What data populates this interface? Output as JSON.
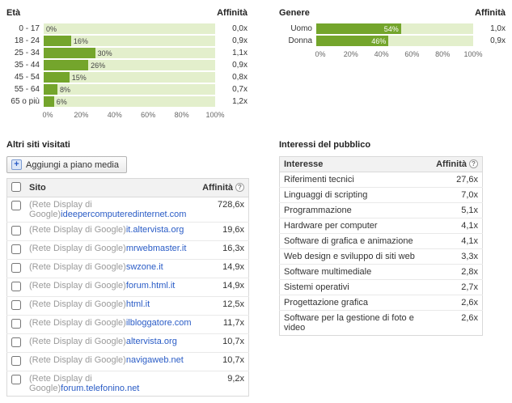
{
  "colors": {
    "bar_green": "#74a52c",
    "band_green": "#e3efcc",
    "link_blue": "#2a5cc6"
  },
  "ui": {
    "help_glyph": "?",
    "add_icon_glyph": "+"
  },
  "chart_data": [
    {
      "id": "age",
      "type": "bar",
      "title": "Età",
      "affinity_label": "Affinità",
      "categories": [
        "0 - 17",
        "18 - 24",
        "25 - 34",
        "35 - 44",
        "45 - 54",
        "55 - 64",
        "65 o più"
      ],
      "values": [
        0,
        16,
        30,
        26,
        15,
        8,
        6
      ],
      "value_labels": [
        "0%",
        "16%",
        "30%",
        "26%",
        "15%",
        "8%",
        "6%"
      ],
      "affinities": [
        "0,0x",
        "0,9x",
        "1,1x",
        "0,9x",
        "0,8x",
        "0,7x",
        "1,2x"
      ],
      "axis_ticks": [
        "0%",
        "20%",
        "40%",
        "60%",
        "80%",
        "100%"
      ],
      "xlim": [
        0,
        100
      ]
    },
    {
      "id": "gender",
      "type": "bar",
      "title": "Genere",
      "affinity_label": "Affinità",
      "categories": [
        "Uomo",
        "Donna"
      ],
      "values": [
        54,
        46
      ],
      "value_labels": [
        "54%",
        "46%"
      ],
      "affinities": [
        "1,0x",
        "0,9x"
      ],
      "axis_ticks": [
        "0%",
        "20%",
        "40%",
        "60%",
        "80%",
        "100%"
      ],
      "xlim": [
        0,
        100
      ]
    }
  ],
  "sites_table": {
    "title": "Altri siti visitati",
    "add_button_label": "Aggiungi a piano media",
    "columns": {
      "site": "Sito",
      "affinity": "Affinità"
    },
    "rows": [
      {
        "prefix": "(Rete Display di Google)",
        "link": "ideepercomputeredinternet.com",
        "affinity": "728,6x"
      },
      {
        "prefix": "(Rete Display di Google)",
        "link": "it.altervista.org",
        "affinity": "19,6x"
      },
      {
        "prefix": "(Rete Display di Google)",
        "link": "mrwebmaster.it",
        "affinity": "16,3x"
      },
      {
        "prefix": "(Rete Display di Google)",
        "link": "swzone.it",
        "affinity": "14,9x"
      },
      {
        "prefix": "(Rete Display di Google)",
        "link": "forum.html.it",
        "affinity": "14,9x"
      },
      {
        "prefix": "(Rete Display di Google)",
        "link": "html.it",
        "affinity": "12,5x"
      },
      {
        "prefix": "(Rete Display di Google)",
        "link": "ilbloggatore.com",
        "affinity": "11,7x"
      },
      {
        "prefix": "(Rete Display di Google)",
        "link": "altervista.org",
        "affinity": "10,7x"
      },
      {
        "prefix": "(Rete Display di Google)",
        "link": "navigaweb.net",
        "affinity": "10,7x"
      },
      {
        "prefix": "(Rete Display di Google)",
        "link": "forum.telefonino.net",
        "affinity": "9,2x"
      }
    ]
  },
  "interests_table": {
    "title": "Interessi del pubblico",
    "columns": {
      "interest": "Interesse",
      "affinity": "Affinità"
    },
    "rows": [
      {
        "label": "Riferimenti tecnici",
        "affinity": "27,6x"
      },
      {
        "label": "Linguaggi di scripting",
        "affinity": "7,0x"
      },
      {
        "label": "Programmazione",
        "affinity": "5,1x"
      },
      {
        "label": "Hardware per computer",
        "affinity": "4,1x"
      },
      {
        "label": "Software di grafica e animazione",
        "affinity": "4,1x"
      },
      {
        "label": "Web design e sviluppo di siti web",
        "affinity": "3,3x"
      },
      {
        "label": "Software multimediale",
        "affinity": "2,8x"
      },
      {
        "label": "Sistemi operativi",
        "affinity": "2,7x"
      },
      {
        "label": "Progettazione grafica",
        "affinity": "2,6x"
      },
      {
        "label": "Software per la gestione di foto e video",
        "affinity": "2,6x"
      }
    ]
  }
}
